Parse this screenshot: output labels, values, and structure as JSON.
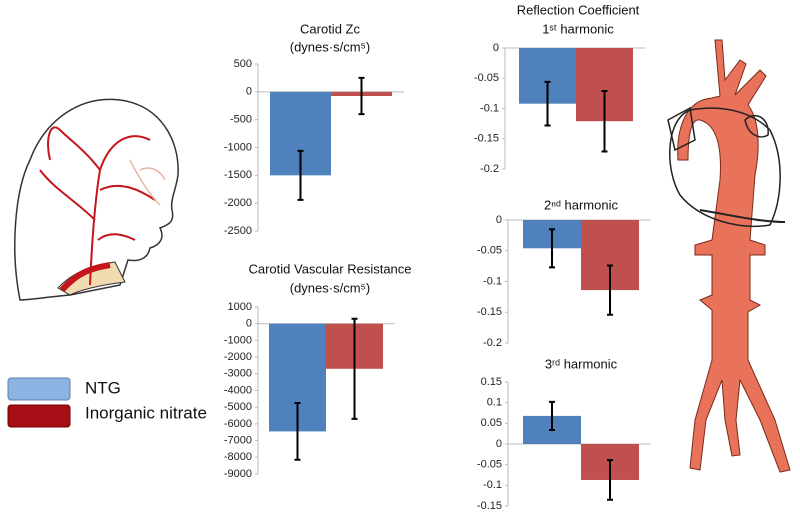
{
  "legend": {
    "entries": [
      {
        "name": "NTG",
        "color": "#8db3e2"
      },
      {
        "name": "Inorganic nitrate",
        "color": "#a50f15"
      }
    ]
  },
  "chart_data": [
    {
      "type": "bar",
      "title": [
        "Carotid Zc",
        "(dynes·s/cm⁵)"
      ],
      "values": [
        -1500,
        -75
      ],
      "errors": [
        440,
        325
      ],
      "colors": [
        "#4f81bd",
        "#c0504d"
      ],
      "ylim": [
        -2500,
        500
      ],
      "yticks": [
        500,
        0,
        -500,
        -1000,
        -1500,
        -2000,
        -2500
      ]
    },
    {
      "type": "bar",
      "title": [
        "Carotid Vascular Resistance",
        "(dynes·s/cm⁵)"
      ],
      "values": [
        -6450,
        -2700
      ],
      "errors": [
        1700,
        3000
      ],
      "colors": [
        "#4f81bd",
        "#c0504d"
      ],
      "ylim": [
        -9000,
        1000
      ],
      "yticks": [
        1000,
        0,
        -1000,
        -2000,
        -3000,
        -4000,
        -5000,
        -6000,
        -7000,
        -8000,
        -9000
      ]
    },
    {
      "type": "bar",
      "title": [
        "Reflection Coefficient",
        "1ˢᵗ harmonic"
      ],
      "values": [
        -0.092,
        -0.121
      ],
      "errors": [
        0.036,
        0.05
      ],
      "colors": [
        "#4f81bd",
        "#c0504d"
      ],
      "ylim": [
        -0.2,
        0
      ],
      "yticks": [
        0,
        -0.05,
        -0.1,
        -0.15,
        -0.2
      ]
    },
    {
      "type": "bar",
      "title": [
        "2ⁿᵈ harmonic"
      ],
      "values": [
        -0.046,
        -0.114
      ],
      "errors": [
        0.031,
        0.04
      ],
      "colors": [
        "#4f81bd",
        "#c0504d"
      ],
      "ylim": [
        -0.2,
        0
      ],
      "yticks": [
        0,
        -0.05,
        -0.1,
        -0.15,
        -0.2
      ]
    },
    {
      "type": "bar",
      "title": [
        "3ʳᵈ harmonic"
      ],
      "values": [
        0.068,
        -0.087
      ],
      "errors": [
        0.034,
        0.048
      ],
      "colors": [
        "#4f81bd",
        "#c0504d"
      ],
      "ylim": [
        -0.15,
        0.15
      ],
      "yticks": [
        0.15,
        0.1,
        0.05,
        0,
        -0.05,
        -0.1,
        -0.15
      ]
    }
  ]
}
